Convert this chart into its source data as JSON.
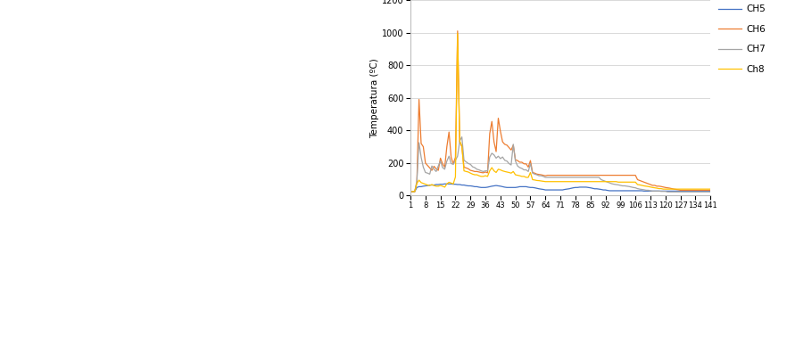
{
  "title": "",
  "ylabel": "Temperatura (ºC)",
  "ylim": [
    0,
    1200
  ],
  "yticks": [
    0,
    200,
    400,
    600,
    800,
    1000,
    1200
  ],
  "xtick_labels": [
    "1",
    "8",
    "15",
    "22",
    "29",
    "36",
    "43",
    "50",
    "57",
    "64",
    "71",
    "78",
    "85",
    "92",
    "99",
    "106",
    "113",
    "120",
    "127",
    "134",
    "141"
  ],
  "xtick_positions": [
    1,
    8,
    15,
    22,
    29,
    36,
    43,
    50,
    57,
    64,
    71,
    78,
    85,
    92,
    99,
    106,
    113,
    120,
    127,
    134,
    141
  ],
  "legend_labels": [
    "CH5",
    "CH6",
    "CH7",
    "Ch8"
  ],
  "line_colors": [
    "#4472C4",
    "#ED7D31",
    "#A5A5A5",
    "#FFC000"
  ],
  "background_color": "#FFFFFF",
  "grid_color": "#D9D9D9",
  "ch5": [
    25,
    25,
    25,
    50,
    55,
    55,
    58,
    60,
    62,
    65,
    65,
    65,
    68,
    68,
    70,
    70,
    72,
    72,
    72,
    72,
    70,
    70,
    68,
    68,
    65,
    65,
    62,
    60,
    60,
    58,
    55,
    55,
    52,
    50,
    50,
    50,
    52,
    55,
    58,
    60,
    62,
    60,
    58,
    55,
    52,
    50,
    50,
    50,
    50,
    50,
    52,
    55,
    55,
    55,
    55,
    52,
    50,
    50,
    48,
    45,
    42,
    40,
    38,
    35,
    35,
    35,
    35,
    35,
    35,
    35,
    35,
    35,
    38,
    40,
    42,
    45,
    48,
    50,
    50,
    52,
    52,
    52,
    52,
    50,
    48,
    45,
    42,
    42,
    40,
    38,
    35,
    35,
    32,
    30,
    30,
    30,
    30,
    30,
    30,
    30,
    30,
    30,
    30,
    30,
    30,
    30,
    30,
    30,
    30,
    28,
    28,
    28,
    28,
    28,
    28,
    28,
    28,
    28,
    28,
    28,
    28,
    28,
    28,
    28,
    28,
    28,
    28,
    28,
    28,
    28,
    28,
    28,
    28,
    28,
    28,
    28,
    28,
    28,
    28,
    28,
    28,
    28,
    28
  ],
  "ch6": [
    25,
    25,
    25,
    80,
    590,
    320,
    300,
    200,
    185,
    170,
    155,
    180,
    165,
    155,
    230,
    195,
    175,
    300,
    390,
    235,
    195,
    235,
    1010,
    330,
    300,
    175,
    170,
    165,
    155,
    152,
    148,
    148,
    145,
    142,
    140,
    145,
    140,
    380,
    455,
    330,
    270,
    475,
    395,
    330,
    315,
    310,
    295,
    280,
    310,
    220,
    215,
    205,
    205,
    195,
    195,
    175,
    215,
    142,
    138,
    132,
    130,
    128,
    125,
    122,
    125,
    125,
    125,
    125,
    125,
    125,
    125,
    125,
    125,
    125,
    125,
    125,
    125,
    125,
    125,
    125,
    125,
    125,
    125,
    125,
    125,
    125,
    125,
    125,
    125,
    125,
    125,
    125,
    125,
    125,
    125,
    125,
    125,
    125,
    125,
    125,
    125,
    125,
    125,
    125,
    125,
    125,
    98,
    93,
    88,
    83,
    78,
    73,
    68,
    63,
    63,
    58,
    58,
    56,
    53,
    50,
    48,
    46,
    43,
    40,
    38,
    36,
    33,
    33,
    33,
    33,
    33,
    33,
    33,
    33,
    33,
    33,
    33,
    33,
    33,
    33,
    33,
    33,
    33
  ],
  "ch7": [
    25,
    25,
    25,
    90,
    325,
    235,
    175,
    142,
    138,
    132,
    182,
    162,
    148,
    182,
    212,
    172,
    162,
    212,
    242,
    197,
    192,
    217,
    242,
    335,
    360,
    217,
    207,
    197,
    192,
    177,
    172,
    162,
    158,
    152,
    148,
    152,
    152,
    237,
    260,
    250,
    230,
    242,
    227,
    237,
    217,
    212,
    197,
    188,
    315,
    212,
    182,
    172,
    167,
    158,
    158,
    148,
    197,
    138,
    132,
    128,
    122,
    122,
    118,
    112,
    112,
    112,
    112,
    112,
    112,
    112,
    112,
    112,
    112,
    112,
    112,
    112,
    112,
    112,
    112,
    112,
    112,
    112,
    112,
    112,
    112,
    112,
    112,
    112,
    112,
    98,
    93,
    88,
    83,
    78,
    73,
    70,
    68,
    66,
    63,
    60,
    60,
    58,
    56,
    53,
    50,
    48,
    43,
    40,
    38,
    36,
    33,
    33,
    30,
    28,
    28,
    28,
    28,
    26,
    26,
    26,
    23,
    23,
    23,
    23,
    23,
    23,
    23,
    23,
    23,
    23,
    23,
    23,
    23,
    23,
    23,
    23,
    23,
    23,
    23,
    23,
    23,
    23,
    23
  ],
  "ch8": [
    25,
    25,
    25,
    75,
    95,
    80,
    75,
    70,
    65,
    62,
    68,
    62,
    58,
    58,
    62,
    58,
    52,
    72,
    82,
    77,
    72,
    115,
    995,
    335,
    305,
    152,
    148,
    145,
    138,
    132,
    128,
    128,
    122,
    118,
    118,
    122,
    118,
    152,
    172,
    152,
    142,
    162,
    158,
    152,
    148,
    145,
    142,
    138,
    148,
    128,
    125,
    122,
    118,
    118,
    112,
    112,
    142,
    98,
    96,
    93,
    92,
    90,
    88,
    86,
    86,
    86,
    86,
    86,
    86,
    86,
    86,
    86,
    86,
    86,
    86,
    86,
    86,
    86,
    86,
    86,
    86,
    86,
    86,
    86,
    86,
    86,
    86,
    86,
    86,
    86,
    86,
    86,
    86,
    86,
    86,
    86,
    86,
    83,
    83,
    83,
    83,
    83,
    83,
    83,
    83,
    83,
    68,
    66,
    63,
    60,
    58,
    56,
    53,
    50,
    48,
    46,
    43,
    43,
    40,
    40,
    40,
    40,
    40,
    40,
    40,
    40,
    40,
    40,
    40,
    40,
    40,
    40,
    40,
    40,
    40,
    40,
    40,
    40,
    40,
    40,
    40,
    40,
    40
  ]
}
